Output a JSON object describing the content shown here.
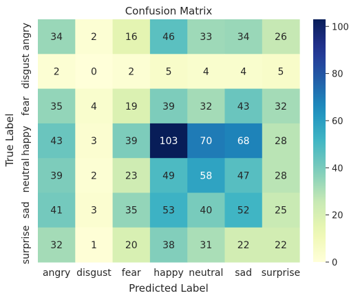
{
  "chart_data": {
    "type": "heatmap",
    "title": "Confusion Matrix",
    "xlabel": "Predicted Label",
    "ylabel": "True Label",
    "x_categories": [
      "angry",
      "disgust",
      "fear",
      "happy",
      "neutral",
      "sad",
      "surprise"
    ],
    "y_categories": [
      "angry",
      "disgust",
      "fear",
      "happy",
      "neutral",
      "sad",
      "surprise"
    ],
    "values": [
      [
        34,
        2,
        16,
        46,
        33,
        34,
        26
      ],
      [
        2,
        0,
        2,
        5,
        4,
        4,
        5
      ],
      [
        35,
        4,
        19,
        39,
        32,
        43,
        32
      ],
      [
        43,
        3,
        39,
        103,
        70,
        68,
        28
      ],
      [
        39,
        2,
        23,
        49,
        58,
        47,
        28
      ],
      [
        41,
        3,
        35,
        53,
        40,
        52,
        25
      ],
      [
        32,
        1,
        20,
        38,
        31,
        22,
        22
      ]
    ],
    "colormap": "YlGnBu",
    "colorbar": {
      "min": 0,
      "max": 103,
      "ticks": [
        0,
        20,
        40,
        60,
        80,
        100
      ]
    }
  }
}
